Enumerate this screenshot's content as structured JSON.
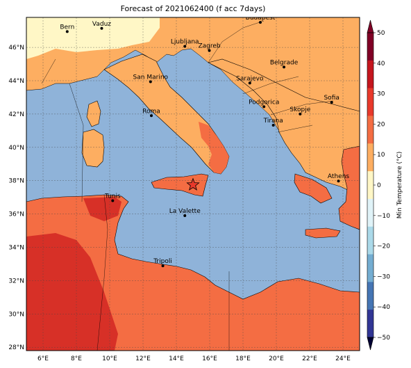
{
  "title": "Forecast of 2021062400 (f acc 7days)",
  "map": {
    "lon_range": [
      5,
      25
    ],
    "lat_range": [
      27.8,
      47.8
    ],
    "lon_ticks": [
      6,
      8,
      10,
      12,
      14,
      16,
      18,
      20,
      22,
      24
    ],
    "lat_ticks": [
      28,
      30,
      32,
      34,
      36,
      38,
      40,
      42,
      44,
      46
    ],
    "lon_tick_labels": [
      "6°E",
      "8°E",
      "10°E",
      "12°E",
      "14°E",
      "16°E",
      "18°E",
      "20°E",
      "22°E",
      "24°E"
    ],
    "lat_tick_labels": [
      "28°N",
      "30°N",
      "32°N",
      "34°N",
      "36°N",
      "38°N",
      "40°N",
      "42°N",
      "44°N",
      "46°N"
    ],
    "grid": true,
    "marker": {
      "type": "star",
      "lon": 15.0,
      "lat": 37.75,
      "color": "#e8392b"
    }
  },
  "cities": [
    {
      "name": "Bern",
      "lon": 7.45,
      "lat": 46.95
    },
    {
      "name": "Vaduz",
      "lon": 9.52,
      "lat": 47.14
    },
    {
      "name": "Budapest",
      "lon": 19.04,
      "lat": 47.5
    },
    {
      "name": "Ljubljana",
      "lon": 14.51,
      "lat": 46.06
    },
    {
      "name": "Zagreb",
      "lon": 15.98,
      "lat": 45.81
    },
    {
      "name": "Belgrade",
      "lon": 20.46,
      "lat": 44.82
    },
    {
      "name": "San Marino",
      "lon": 12.45,
      "lat": 43.94
    },
    {
      "name": "Sarajevo",
      "lon": 18.41,
      "lat": 43.86
    },
    {
      "name": "Sofia",
      "lon": 23.32,
      "lat": 42.7
    },
    {
      "name": "Podgorica",
      "lon": 19.26,
      "lat": 42.44
    },
    {
      "name": "Roma",
      "lon": 12.5,
      "lat": 41.9
    },
    {
      "name": "Skopje",
      "lon": 21.43,
      "lat": 42.0
    },
    {
      "name": "Tirana",
      "lon": 19.82,
      "lat": 41.33
    },
    {
      "name": "Athens",
      "lon": 23.73,
      "lat": 37.98
    },
    {
      "name": "Tunis",
      "lon": 10.18,
      "lat": 36.8
    },
    {
      "name": "La Valette",
      "lon": 14.51,
      "lat": 35.9
    },
    {
      "name": "Tripoli",
      "lon": 13.19,
      "lat": 32.89
    }
  ],
  "colorbar": {
    "label": "Min Temperature (°C)",
    "ticks": [
      "50",
      "40",
      "30",
      "20",
      "10",
      "0",
      "−10",
      "−20",
      "−30",
      "−40",
      "−50"
    ],
    "bands": [
      "#800026",
      "#c4161e",
      "#e8392b",
      "#f46d43",
      "#fdae61",
      "#fff7c6",
      "#e0f3f8",
      "#abd9e9",
      "#74add1",
      "#4575b4",
      "#313695"
    ]
  },
  "colors": {
    "sea": "#8fb3d9",
    "land_hot": "#f46d43",
    "land_warm": "#fdae61",
    "land_cool": "#fff7c6",
    "land_very_hot": "#d73027"
  }
}
